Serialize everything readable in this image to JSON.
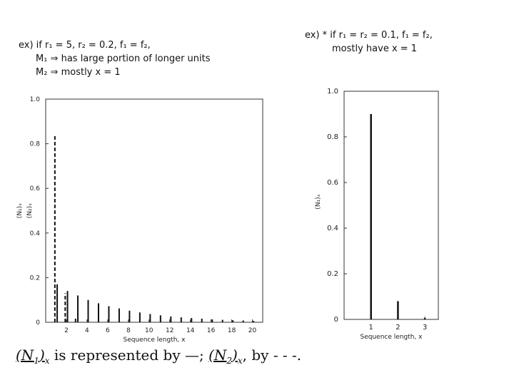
{
  "notes": {
    "left": {
      "line1": "ex) if r₁ = 5, r₂ = 0.2, f₁ = f₂,",
      "line2": "M₁ ⇒ has large portion of longer units",
      "line3": "M₂ ⇒ mostly x = 1"
    },
    "right": {
      "line1": "ex) * if r₁ = r₂ = 0.1, f₁ = f₂,",
      "line2": "mostly have x = 1"
    }
  },
  "caption": {
    "sym1_base": "(N",
    "sym1_sub": "1",
    "sym1_close": ")",
    "sym1_outer_sub": "x",
    "mid": " is represented by —; ",
    "sym2_base": "(N",
    "sym2_sub": "2",
    "sym2_close": ")",
    "sym2_outer_sub": "x",
    "end": ", by - - -."
  },
  "chart_data": [
    {
      "type": "bar",
      "xlabel": "Sequence length, x",
      "ylabel_1": "(N₁)ₓ",
      "ylabel_2": "(N₂)ₓ",
      "xlim": [
        0,
        21
      ],
      "ylim": [
        0,
        1.0
      ],
      "xticks": [
        "2",
        "4",
        "6",
        "8",
        "10",
        "12",
        "14",
        "16",
        "18",
        "20"
      ],
      "yticks": [
        "0",
        "0.2",
        "0.4",
        "0.6",
        "0.8",
        "1.0"
      ],
      "series": [
        {
          "name": "(N₁)ₓ",
          "style": "solid",
          "x": [
            1,
            2,
            3,
            4,
            5,
            6,
            7,
            8,
            9,
            10,
            11,
            12,
            13,
            14,
            15,
            16,
            17,
            18,
            19,
            20
          ],
          "values": [
            0.17,
            0.14,
            0.12,
            0.1,
            0.085,
            0.072,
            0.062,
            0.052,
            0.044,
            0.037,
            0.031,
            0.026,
            0.022,
            0.019,
            0.016,
            0.013,
            0.011,
            0.009,
            0.008,
            0.006
          ]
        },
        {
          "name": "(N₂)ₓ",
          "style": "dashed",
          "x": [
            1,
            2,
            3
          ],
          "values": [
            0.84,
            0.13,
            0.02
          ]
        }
      ]
    },
    {
      "type": "bar",
      "xlabel": "Sequence length, x",
      "ylabel_1": "(N₁)ₓ",
      "xlim": [
        0,
        3.5
      ],
      "ylim": [
        0,
        1.0
      ],
      "xticks": [
        "1",
        "2",
        "3"
      ],
      "yticks": [
        "0",
        "0.2",
        "0.4",
        "0.6",
        "0.8",
        "1.0"
      ],
      "series": [
        {
          "name": "(N₁)ₓ",
          "style": "solid",
          "x": [
            1,
            2,
            3
          ],
          "values": [
            0.9,
            0.08,
            0.006
          ]
        }
      ]
    }
  ]
}
